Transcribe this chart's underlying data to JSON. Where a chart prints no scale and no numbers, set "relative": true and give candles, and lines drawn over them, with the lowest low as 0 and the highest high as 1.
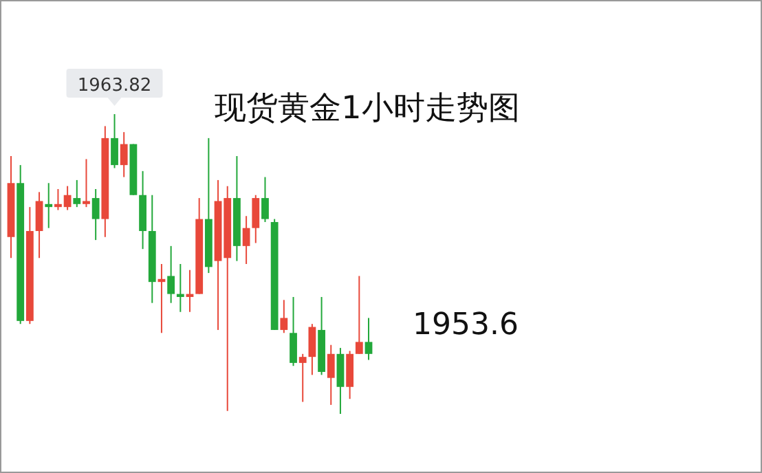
{
  "chart_data": {
    "type": "candlestick",
    "title": "现货黄金1小时走势图",
    "relative": true,
    "annotations": [
      "1963.82",
      "1953.6"
    ],
    "categories": [
      null,
      null,
      null,
      null,
      null,
      null,
      null,
      null,
      null,
      null,
      null,
      null,
      null,
      null,
      null,
      null,
      null,
      null,
      null,
      null,
      null,
      null,
      null,
      null,
      null,
      null,
      null,
      null,
      null,
      null,
      null,
      null,
      null,
      null,
      null,
      null,
      null,
      null,
      null
    ],
    "ohlc": [
      [
        0.59,
        0.86,
        0.52,
        0.77
      ],
      [
        0.77,
        0.83,
        0.3,
        0.31
      ],
      [
        0.31,
        0.69,
        0.3,
        0.61
      ],
      [
        0.61,
        0.74,
        0.52,
        0.71
      ],
      [
        0.7,
        0.77,
        0.62,
        0.69
      ],
      [
        0.69,
        0.75,
        0.68,
        0.7
      ],
      [
        0.69,
        0.76,
        0.68,
        0.73
      ],
      [
        0.72,
        0.78,
        0.69,
        0.7
      ],
      [
        0.7,
        0.85,
        0.69,
        0.71
      ],
      [
        0.72,
        0.75,
        0.58,
        0.65
      ],
      [
        0.65,
        0.96,
        0.59,
        0.92
      ],
      [
        0.92,
        1.0,
        0.82,
        0.83
      ],
      [
        0.83,
        0.94,
        0.79,
        0.9
      ],
      [
        0.9,
        0.9,
        0.73,
        0.73
      ],
      [
        0.73,
        0.81,
        0.55,
        0.61
      ],
      [
        0.61,
        0.73,
        0.37,
        0.44
      ],
      [
        0.44,
        0.5,
        0.27,
        0.45
      ],
      [
        0.46,
        0.56,
        0.37,
        0.4
      ],
      [
        0.4,
        0.5,
        0.34,
        0.39
      ],
      [
        0.39,
        0.48,
        0.34,
        0.4
      ],
      [
        0.4,
        0.72,
        0.4,
        0.65
      ],
      [
        0.65,
        0.92,
        0.47,
        0.49
      ],
      [
        0.51,
        0.78,
        0.28,
        0.71
      ],
      [
        0.52,
        0.76,
        0.01,
        0.72
      ],
      [
        0.72,
        0.86,
        0.51,
        0.56
      ],
      [
        0.56,
        0.66,
        0.5,
        0.62
      ],
      [
        0.62,
        0.73,
        0.57,
        0.72
      ],
      [
        0.72,
        0.79,
        0.64,
        0.65
      ],
      [
        0.64,
        0.65,
        0.28,
        0.28
      ],
      [
        0.28,
        0.38,
        0.27,
        0.32
      ],
      [
        0.27,
        0.39,
        0.16,
        0.17
      ],
      [
        0.17,
        0.2,
        0.04,
        0.19
      ],
      [
        0.19,
        0.3,
        0.13,
        0.29
      ],
      [
        0.28,
        0.39,
        0.13,
        0.14
      ],
      [
        0.12,
        0.23,
        0.03,
        0.2
      ],
      [
        0.2,
        0.22,
        0.0,
        0.09
      ],
      [
        0.09,
        0.21,
        0.05,
        0.2
      ],
      [
        0.2,
        0.46,
        0.2,
        0.24
      ],
      [
        0.24,
        0.32,
        0.18,
        0.2
      ]
    ],
    "colors": [
      "#e8483a",
      "#22a83a",
      "#e8483a",
      "#e8483a",
      "#22a83a",
      "#e8483a",
      "#e8483a",
      "#22a83a",
      "#e8483a",
      "#22a83a",
      "#e8483a",
      "#22a83a",
      "#e8483a",
      "#22a83a",
      "#22a83a",
      "#22a83a",
      "#e8483a",
      "#22a83a",
      "#22a83a",
      "#e8483a",
      "#e8483a",
      "#22a83a",
      "#e8483a",
      "#e8483a",
      "#22a83a",
      "#e8483a",
      "#e8483a",
      "#22a83a",
      "#22a83a",
      "#e8483a",
      "#22a83a",
      "#e8483a",
      "#e8483a",
      "#22a83a",
      "#e8483a",
      "#22a83a",
      "#e8483a",
      "#e8483a",
      "#22a83a"
    ]
  }
}
